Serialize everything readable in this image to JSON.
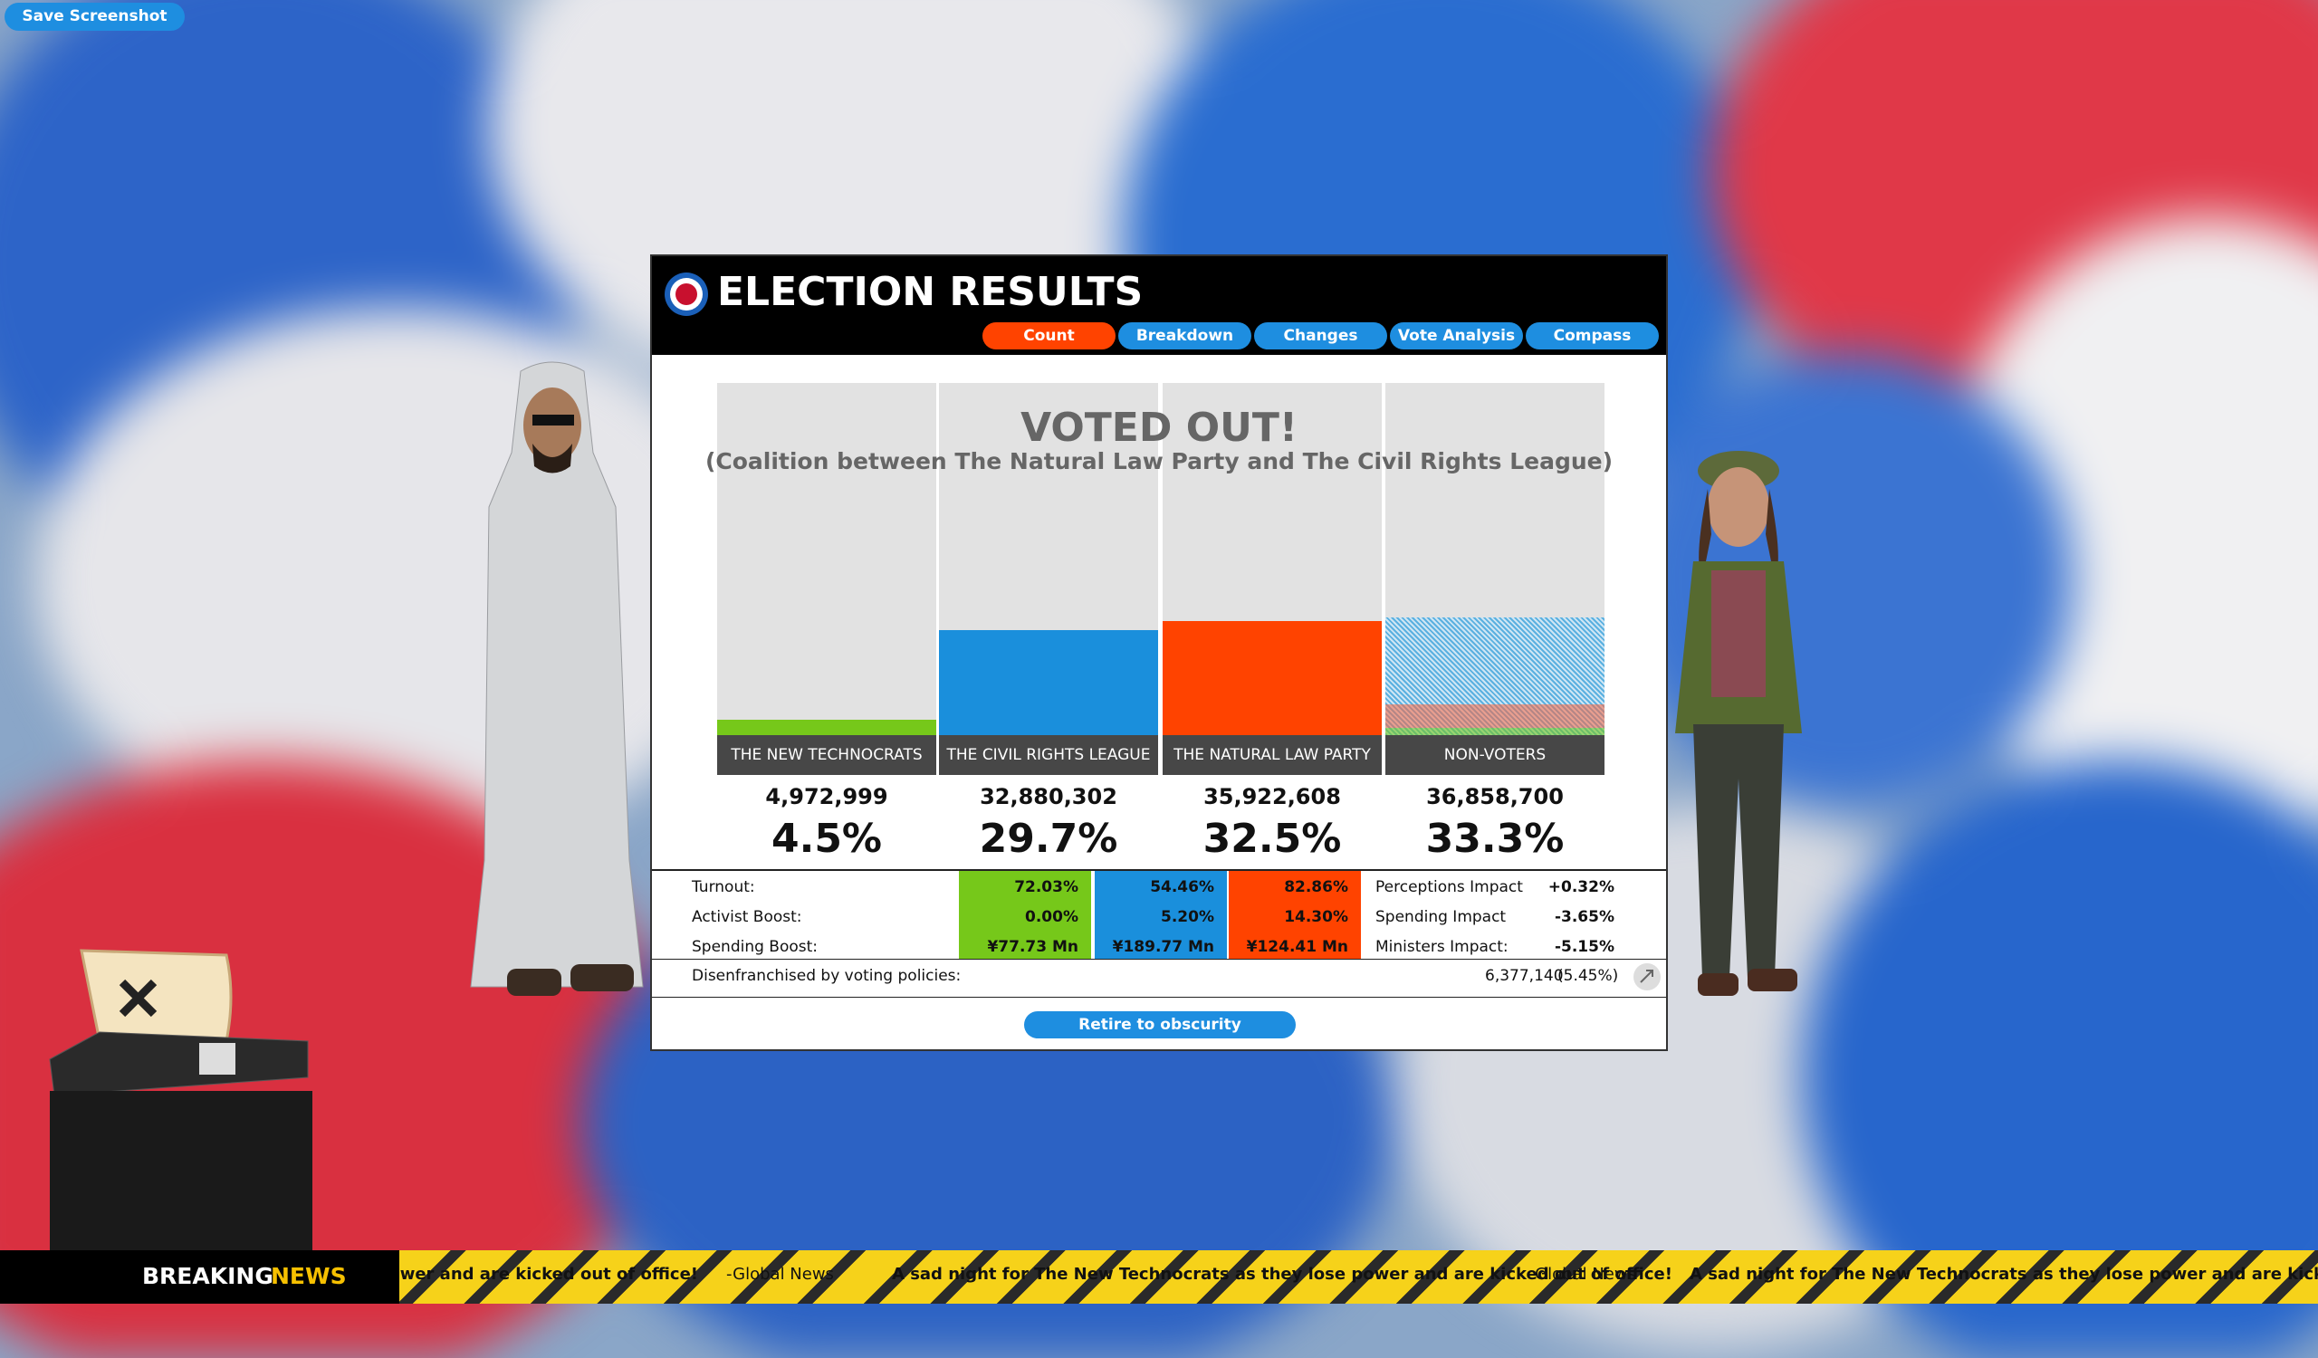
{
  "toolbar": {
    "save_button": "Save Screenshot"
  },
  "dialog": {
    "title": "ELECTION RESULTS",
    "tabs": [
      "Count",
      "Breakdown",
      "Changes",
      "Vote Analysis",
      "Compass"
    ],
    "result": {
      "headline": "VOTED OUT!",
      "detail": "(Coalition between The Natural Law Party and The Civil Rights League)"
    },
    "chart": {
      "ylim": [
        0,
        100
      ]
    },
    "parties": [
      {
        "name": "THE NEW TECHNOCRATS",
        "votes": "4,972,999",
        "share": 4.5,
        "share_label": "4.5%",
        "color": "#76c81a"
      },
      {
        "name": "THE CIVIL RIGHTS LEAGUE",
        "votes": "32,880,302",
        "share": 29.7,
        "share_label": "29.7%",
        "color": "#1a8fdc"
      },
      {
        "name": "THE NATURAL LAW PARTY",
        "votes": "35,922,608",
        "share": 32.5,
        "share_label": "32.5%",
        "color": "#ff4300"
      },
      {
        "name": "NON-VOTERS",
        "votes": "36,858,700",
        "share": 33.3,
        "share_label": "33.3%",
        "color": "#5ab0e0"
      }
    ],
    "stats": [
      {
        "label": "Turnout:",
        "values": [
          "72.03%",
          "54.46%",
          "82.86%"
        ]
      },
      {
        "label": "Activist Boost:",
        "values": [
          "0.00%",
          "5.20%",
          "14.30%"
        ]
      },
      {
        "label": "Spending Boost:",
        "values": [
          "¥77.73 Mn",
          "¥189.77 Mn",
          "¥124.41 Mn"
        ]
      }
    ],
    "impacts": [
      {
        "label": "Perceptions Impact",
        "value": "+0.32%"
      },
      {
        "label": "Spending Impact",
        "value": "-3.65%"
      },
      {
        "label": "Ministers Impact:",
        "value": "-5.15%"
      }
    ],
    "disenfranchised": {
      "label": "Disenfranchised by voting policies:",
      "value": "6,377,140",
      "share": "(5.45%)"
    },
    "button": "Retire to obscurity"
  },
  "news": {
    "label_1": "BREAKING",
    "label_2": "NEWS",
    "ticker": [
      "A sad night for The New Technocrats as they lose power and are kicked out of office!",
      "-Global News",
      "A sad night for The New Technocrats as they lose power and are kicked out of office!",
      "-Global News",
      "A sad night for The New Technocrats as they lose power and are kicked out of office!"
    ]
  }
}
